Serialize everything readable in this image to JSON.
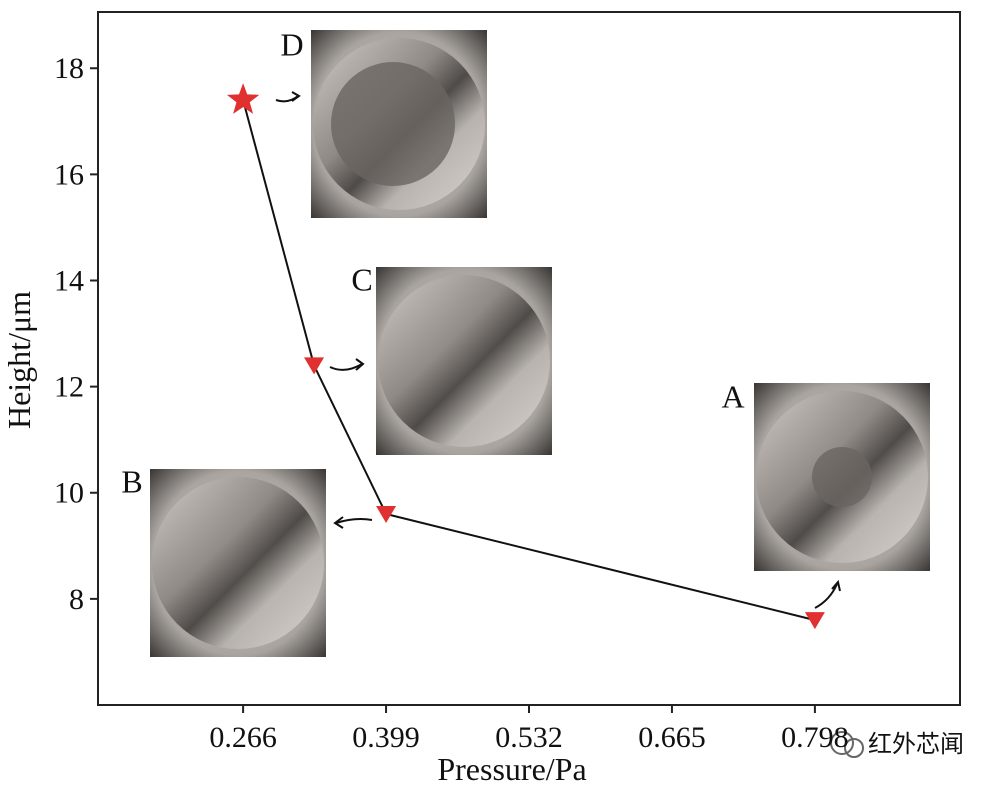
{
  "chart_data": {
    "type": "line",
    "x_label": "Pressure/Pa",
    "y_label": "Height/μm",
    "x": [
      0.266,
      0.332,
      0.399,
      0.798
    ],
    "series": [
      {
        "name": "Height",
        "color": "#e03030",
        "values": [
          17.4,
          12.4,
          9.6,
          7.6
        ]
      }
    ],
    "point_labels": [
      "D",
      "C",
      "B",
      "A"
    ],
    "markers": [
      "star",
      "triangle-down",
      "triangle-down",
      "triangle-down"
    ],
    "line_color": "#111111",
    "xlim": [
      0.131,
      0.933
    ],
    "xticks": [
      0.266,
      0.399,
      0.532,
      0.665,
      0.798
    ],
    "ylim": [
      6,
      19.06
    ],
    "yticks": [
      8,
      10,
      12,
      14,
      16,
      18
    ],
    "watermark": "红外芯闻"
  }
}
